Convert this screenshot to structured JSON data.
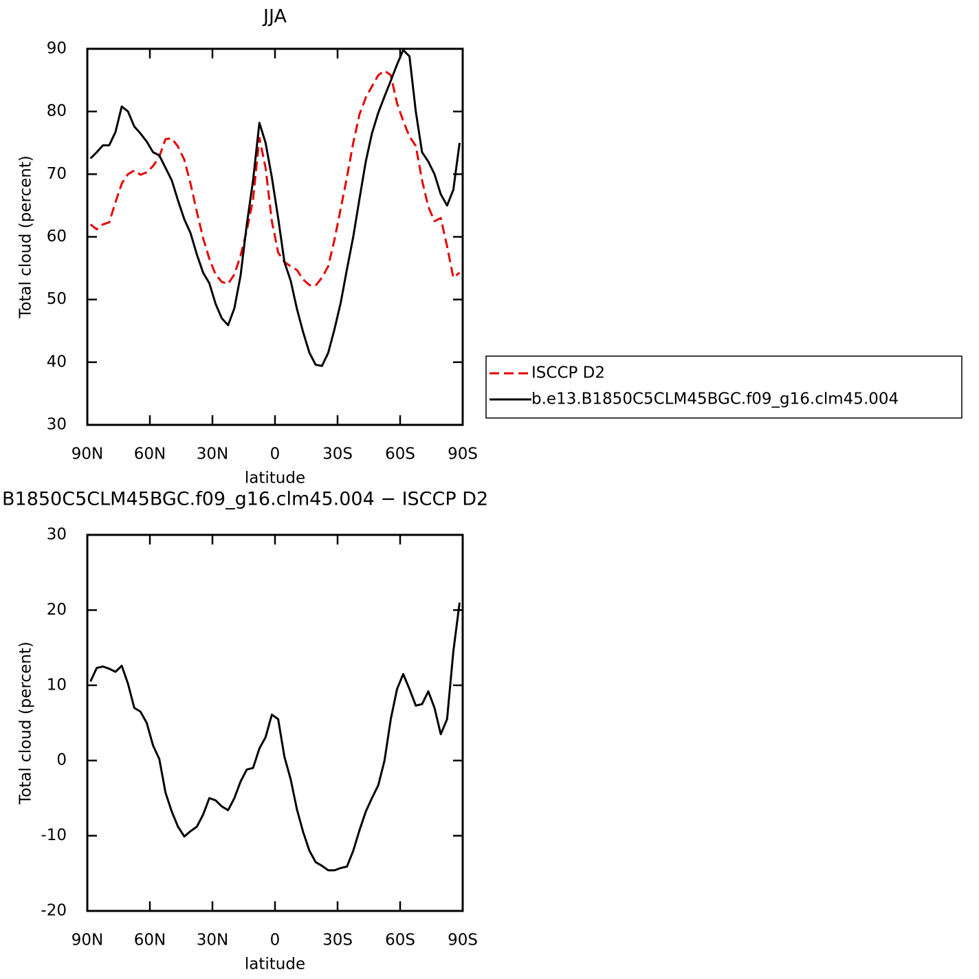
{
  "chart_data": [
    {
      "type": "line",
      "title": "JJA",
      "xlabel": "latitude",
      "ylabel": "Total cloud (percent)",
      "xlim": [
        90,
        -90
      ],
      "xticks": [
        {
          "value": 90,
          "label": "90N"
        },
        {
          "value": 60,
          "label": "60N"
        },
        {
          "value": 30,
          "label": "30N"
        },
        0,
        {
          "value": -30,
          "label": "30S"
        },
        {
          "value": -60,
          "label": "60S"
        },
        {
          "value": -90,
          "label": "90S"
        }
      ],
      "ylim": [
        30,
        90
      ],
      "yticks": [
        30,
        40,
        50,
        60,
        70,
        80,
        90
      ],
      "legend": "right",
      "x": [
        88.5,
        85.5,
        82.5,
        79.5,
        76.5,
        73.5,
        70.5,
        67.5,
        64.5,
        61.5,
        58.5,
        55.5,
        52.5,
        49.5,
        46.5,
        43.5,
        40.5,
        37.5,
        34.5,
        31.5,
        28.5,
        25.5,
        22.5,
        19.5,
        16.5,
        13.5,
        10.5,
        7.5,
        4.5,
        1.5,
        -1.5,
        -4.5,
        -7.5,
        -10.5,
        -13.5,
        -16.5,
        -19.5,
        -22.5,
        -25.5,
        -28.5,
        -31.5,
        -34.5,
        -37.5,
        -40.5,
        -43.5,
        -46.5,
        -49.5,
        -52.5,
        -55.5,
        -58.5,
        -61.5,
        -64.5,
        -67.5,
        -70.5,
        -73.5,
        -76.5,
        -79.5,
        -82.5,
        -85.5,
        -88.5
      ],
      "series": [
        {
          "name": "ISCCP D2",
          "color": "#e60000",
          "style": "dashed",
          "values": [
            62.0,
            61.2,
            62.0,
            62.3,
            65.5,
            68.5,
            70.0,
            70.6,
            69.9,
            70.3,
            71.3,
            72.8,
            75.6,
            75.7,
            74.4,
            72.3,
            68.5,
            64.0,
            59.8,
            56.5,
            54.0,
            52.8,
            52.5,
            54.0,
            57.0,
            61.0,
            66.0,
            75.8,
            71.0,
            62.5,
            57.5,
            56.0,
            55.3,
            54.7,
            53.2,
            52.3,
            52.2,
            53.5,
            55.3,
            59.5,
            64.5,
            69.5,
            75.0,
            79.5,
            82.2,
            84.0,
            85.8,
            86.5,
            85.8,
            81.3,
            78.5,
            76.0,
            74.5,
            69.0,
            64.8,
            62.5,
            63.0,
            58.5,
            53.5,
            54.3
          ]
        },
        {
          "name": "b.e13.B1850C5CLM45BGC.f09_g16.clm45.004",
          "color": "#000000",
          "style": "solid",
          "values": [
            72.5,
            73.5,
            74.6,
            74.6,
            76.7,
            80.8,
            80.0,
            77.6,
            76.5,
            75.2,
            73.5,
            73.0,
            71.0,
            69.0,
            65.8,
            62.8,
            60.6,
            57.2,
            54.3,
            52.6,
            49.3,
            47.0,
            45.9,
            48.6,
            53.8,
            62.0,
            69.0,
            78.2,
            75.0,
            69.5,
            63.0,
            56.0,
            53.0,
            48.5,
            44.8,
            41.5,
            39.6,
            39.4,
            41.5,
            45.2,
            49.5,
            54.8,
            60.0,
            66.0,
            72.0,
            76.5,
            79.8,
            82.4,
            84.9,
            87.5,
            89.8,
            88.8,
            80.0,
            73.5,
            72.0,
            70.0,
            66.8,
            65.0,
            67.5,
            75.0
          ]
        }
      ]
    },
    {
      "type": "line",
      "title": "B1850C5CLM45BGC.f09_g16.clm45.004 − ISCCP D2",
      "xlabel": "latitude",
      "ylabel": "Total cloud (percent)",
      "xlim": [
        90,
        -90
      ],
      "xticks": [
        {
          "value": 90,
          "label": "90N"
        },
        {
          "value": 60,
          "label": "60N"
        },
        {
          "value": 30,
          "label": "30N"
        },
        0,
        {
          "value": -30,
          "label": "30S"
        },
        {
          "value": -60,
          "label": "60S"
        },
        {
          "value": -90,
          "label": "90S"
        }
      ],
      "ylim": [
        -20,
        30
      ],
      "yticks": [
        -20,
        -10,
        0,
        10,
        20,
        30
      ],
      "color": "#000000",
      "x": [
        88.5,
        85.5,
        82.5,
        79.5,
        76.5,
        73.5,
        70.5,
        67.5,
        64.5,
        61.5,
        58.5,
        55.5,
        52.5,
        49.5,
        46.5,
        43.5,
        40.5,
        37.5,
        34.5,
        31.5,
        28.5,
        25.5,
        22.5,
        19.5,
        16.5,
        13.5,
        10.5,
        7.5,
        4.5,
        1.5,
        -1.5,
        -4.5,
        -7.5,
        -10.5,
        -13.5,
        -16.5,
        -19.5,
        -22.5,
        -25.5,
        -28.5,
        -31.5,
        -34.5,
        -37.5,
        -40.5,
        -43.5,
        -46.5,
        -49.5,
        -52.5,
        -55.5,
        -58.5,
        -61.5,
        -64.5,
        -67.5,
        -70.5,
        -73.5,
        -76.5,
        -79.5,
        -82.5,
        -85.5,
        -88.5
      ],
      "values": [
        10.5,
        12.3,
        12.5,
        12.2,
        11.8,
        12.6,
        10.2,
        7.0,
        6.5,
        5.0,
        2.0,
        0.2,
        -4.3,
        -6.8,
        -8.8,
        -10.1,
        -9.4,
        -8.8,
        -7.2,
        -5.0,
        -5.3,
        -6.1,
        -6.6,
        -5.0,
        -2.8,
        -1.2,
        -1.0,
        1.6,
        3.1,
        6.1,
        5.5,
        0.5,
        -2.5,
        -6.5,
        -9.5,
        -12.0,
        -13.5,
        -14.0,
        -14.6,
        -14.6,
        -14.3,
        -14.1,
        -12.0,
        -9.3,
        -6.8,
        -5.0,
        -3.3,
        0.0,
        5.5,
        9.5,
        11.5,
        9.5,
        7.3,
        7.5,
        9.2,
        7.0,
        3.5,
        5.5,
        14.5,
        21.0
      ]
    }
  ]
}
